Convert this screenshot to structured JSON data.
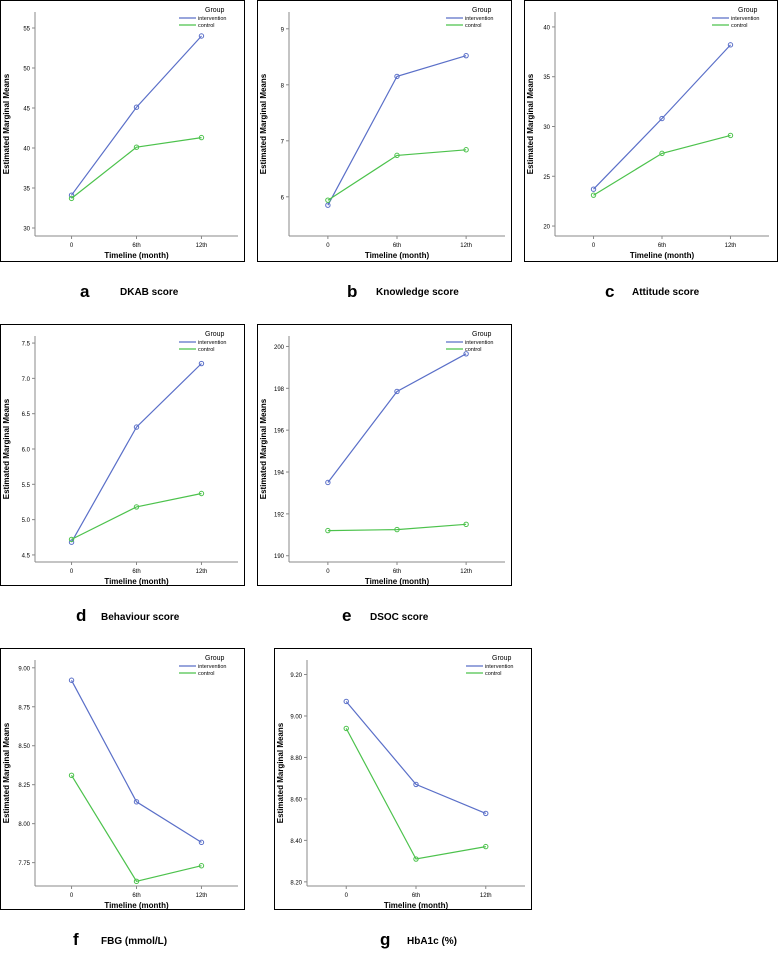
{
  "colors": {
    "intervention": "#5a6fc8",
    "control": "#4cc24c",
    "frame": "#000000",
    "axis": "#888888"
  },
  "chart_data": [
    {
      "id": "a",
      "type": "line",
      "panel_letter": "a",
      "caption": "DKAB score",
      "xlabel": "Timeline (month)",
      "ylabel": "Estimated Marginal Means",
      "categories": [
        "0",
        "6th",
        "12th"
      ],
      "ylim": [
        29,
        57
      ],
      "yticks": [
        "30",
        "35",
        "40",
        "45",
        "50",
        "55"
      ],
      "ytick_values": [
        30,
        35,
        40,
        45,
        50,
        55
      ],
      "legend": {
        "title": "Group",
        "placement": "top-right",
        "entries": [
          "intervention",
          "control"
        ]
      },
      "series": [
        {
          "name": "intervention",
          "values": [
            34.1,
            45.1,
            54.0
          ]
        },
        {
          "name": "control",
          "values": [
            33.7,
            40.1,
            41.3
          ]
        }
      ]
    },
    {
      "id": "b",
      "type": "line",
      "panel_letter": "b",
      "caption": "Knowledge score",
      "xlabel": "Timeline (month)",
      "ylabel": "Estimated Marginal Means",
      "categories": [
        "0",
        "6th",
        "12th"
      ],
      "ylim": [
        5.3,
        9.3
      ],
      "yticks": [
        "6",
        "7",
        "8",
        "9"
      ],
      "ytick_values": [
        6,
        7,
        8,
        9
      ],
      "legend": {
        "title": "Group",
        "placement": "top-right",
        "entries": [
          "intervention",
          "control"
        ]
      },
      "series": [
        {
          "name": "intervention",
          "values": [
            5.85,
            8.15,
            8.52
          ]
        },
        {
          "name": "control",
          "values": [
            5.94,
            6.74,
            6.84
          ]
        }
      ]
    },
    {
      "id": "c",
      "type": "line",
      "panel_letter": "c",
      "caption": "Attitude score",
      "xlabel": "Timeline (month)",
      "ylabel": "Estimated Marginal Means",
      "categories": [
        "0",
        "6th",
        "12th"
      ],
      "ylim": [
        19,
        41.5
      ],
      "yticks": [
        "20",
        "25",
        "30",
        "35",
        "40"
      ],
      "ytick_values": [
        20,
        25,
        30,
        35,
        40
      ],
      "legend": {
        "title": "Group",
        "placement": "top-right",
        "entries": [
          "intervention",
          "control"
        ]
      },
      "series": [
        {
          "name": "intervention",
          "values": [
            23.7,
            30.8,
            38.2
          ]
        },
        {
          "name": "control",
          "values": [
            23.1,
            27.3,
            29.1
          ]
        }
      ]
    },
    {
      "id": "d",
      "type": "line",
      "panel_letter": "d",
      "caption": "Behaviour score",
      "xlabel": "Timeline (month)",
      "ylabel": "Estimated Marginal Means",
      "categories": [
        "0",
        "6th",
        "12th"
      ],
      "ylim": [
        4.4,
        7.6
      ],
      "yticks": [
        "4.5",
        "5.0",
        "5.5",
        "6.0",
        "6.5",
        "7.0",
        "7.5"
      ],
      "ytick_values": [
        4.5,
        5.0,
        5.5,
        6.0,
        6.5,
        7.0,
        7.5
      ],
      "legend": {
        "title": "Group",
        "placement": "top-right",
        "entries": [
          "intervention",
          "control"
        ]
      },
      "series": [
        {
          "name": "intervention",
          "values": [
            4.68,
            6.31,
            7.21
          ]
        },
        {
          "name": "control",
          "values": [
            4.72,
            5.18,
            5.37
          ]
        }
      ]
    },
    {
      "id": "e",
      "type": "line",
      "panel_letter": "e",
      "caption": "DSOC score",
      "xlabel": "Timeline (month)",
      "ylabel": "Estimated Marginal Means",
      "categories": [
        "0",
        "6th",
        "12th"
      ],
      "ylim": [
        189.7,
        200.5
      ],
      "yticks": [
        "190",
        "192",
        "194",
        "196",
        "198",
        "200"
      ],
      "ytick_values": [
        190,
        192,
        194,
        196,
        198,
        200
      ],
      "legend": {
        "title": "Group",
        "placement": "top-right",
        "entries": [
          "intervention",
          "control"
        ]
      },
      "series": [
        {
          "name": "intervention",
          "values": [
            193.5,
            197.85,
            199.65
          ]
        },
        {
          "name": "control",
          "values": [
            191.2,
            191.25,
            191.5
          ]
        }
      ]
    },
    {
      "id": "f",
      "type": "line",
      "panel_letter": "f",
      "caption": "FBG (mmol/L)",
      "xlabel": "Timeline (month)",
      "ylabel": "Estimated Marginal Means",
      "categories": [
        "0",
        "6th",
        "12th"
      ],
      "ylim": [
        7.6,
        9.05
      ],
      "yticks": [
        "7.75",
        "8.00",
        "8.25",
        "8.50",
        "8.75",
        "9.00"
      ],
      "ytick_values": [
        7.75,
        8.0,
        8.25,
        8.5,
        8.75,
        9.0
      ],
      "legend": {
        "title": "Group",
        "placement": "top-right",
        "entries": [
          "intervention",
          "control"
        ]
      },
      "series": [
        {
          "name": "intervention",
          "values": [
            8.92,
            8.14,
            7.88
          ]
        },
        {
          "name": "control",
          "values": [
            8.31,
            7.63,
            7.73
          ]
        }
      ]
    },
    {
      "id": "g",
      "type": "line",
      "panel_letter": "g",
      "caption": "HbA1c (%)",
      "xlabel": "Timeline (month)",
      "ylabel": "Estimated Marginal Means",
      "categories": [
        "0",
        "6th",
        "12th"
      ],
      "ylim": [
        8.18,
        9.27
      ],
      "yticks": [
        "8.20",
        "8.40",
        "8.60",
        "8.80",
        "9.00",
        "9.20"
      ],
      "ytick_values": [
        8.2,
        8.4,
        8.6,
        8.8,
        9.0,
        9.2
      ],
      "legend": {
        "title": "Group",
        "placement": "top-right",
        "entries": [
          "intervention",
          "control"
        ]
      },
      "series": [
        {
          "name": "intervention",
          "values": [
            9.07,
            8.67,
            8.53
          ]
        },
        {
          "name": "control",
          "values": [
            8.94,
            8.31,
            8.37
          ]
        }
      ]
    }
  ]
}
